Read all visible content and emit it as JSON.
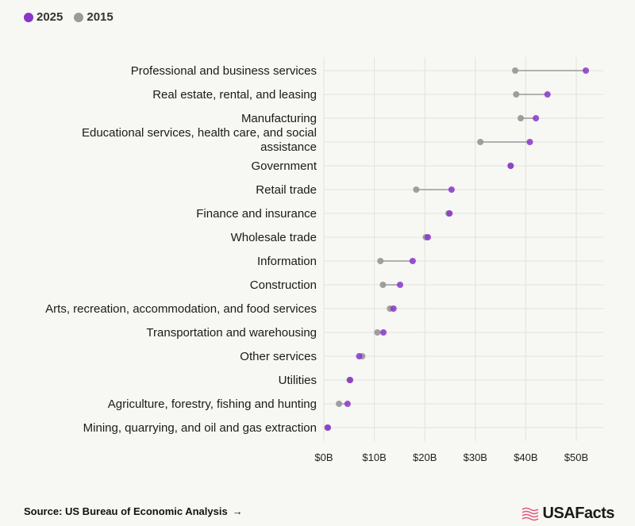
{
  "legend": [
    {
      "label": "2025",
      "color": "#8a35c9"
    },
    {
      "label": "2015",
      "color": "#9a9a9a"
    }
  ],
  "source": {
    "label": "Source: US Bureau of Economic Analysis",
    "arrow": "→"
  },
  "brand": {
    "name": "USAFacts",
    "icon": "usafacts-flag-icon",
    "color": "#e05a7a"
  },
  "colors": {
    "y2025": "#8a35c9",
    "y2015": "#9a9a9a",
    "connector": "#9a9a9a",
    "grid": "#e2e2de"
  },
  "chart_data": {
    "type": "dumbbell",
    "xlim": [
      0,
      55
    ],
    "x_ticks": [
      0,
      10,
      20,
      30,
      40,
      50
    ],
    "x_tick_labels": [
      "$0B",
      "$10B",
      "$20B",
      "$30B",
      "$40B",
      "$50B"
    ],
    "grid": true,
    "legend_position": "top-left",
    "categories": [
      [
        "Professional and business services"
      ],
      [
        "Real estate, rental, and leasing"
      ],
      [
        "Manufacturing"
      ],
      [
        "Educational services, health care, and social",
        "assistance"
      ],
      [
        "Government"
      ],
      [
        "Retail trade"
      ],
      [
        "Finance and insurance"
      ],
      [
        "Wholesale trade"
      ],
      [
        "Information"
      ],
      [
        "Construction"
      ],
      [
        "Arts, recreation, accommodation, and food services"
      ],
      [
        "Transportation and warehousing"
      ],
      [
        "Other services"
      ],
      [
        "Utilities"
      ],
      [
        "Agriculture, forestry, fishing and hunting"
      ],
      [
        "Mining, quarrying, and oil and gas extraction"
      ]
    ],
    "series": [
      {
        "name": "2015",
        "values": [
          37.9,
          38.1,
          39.0,
          31.0,
          37.0,
          18.3,
          24.7,
          20.2,
          11.2,
          11.7,
          13.1,
          10.6,
          7.6,
          5.1,
          3.0,
          0.7
        ]
      },
      {
        "name": "2025",
        "values": [
          51.9,
          44.3,
          42.0,
          40.8,
          37.0,
          25.3,
          24.9,
          20.6,
          17.6,
          15.1,
          13.8,
          11.8,
          7.0,
          5.2,
          4.7,
          0.8
        ]
      }
    ]
  }
}
